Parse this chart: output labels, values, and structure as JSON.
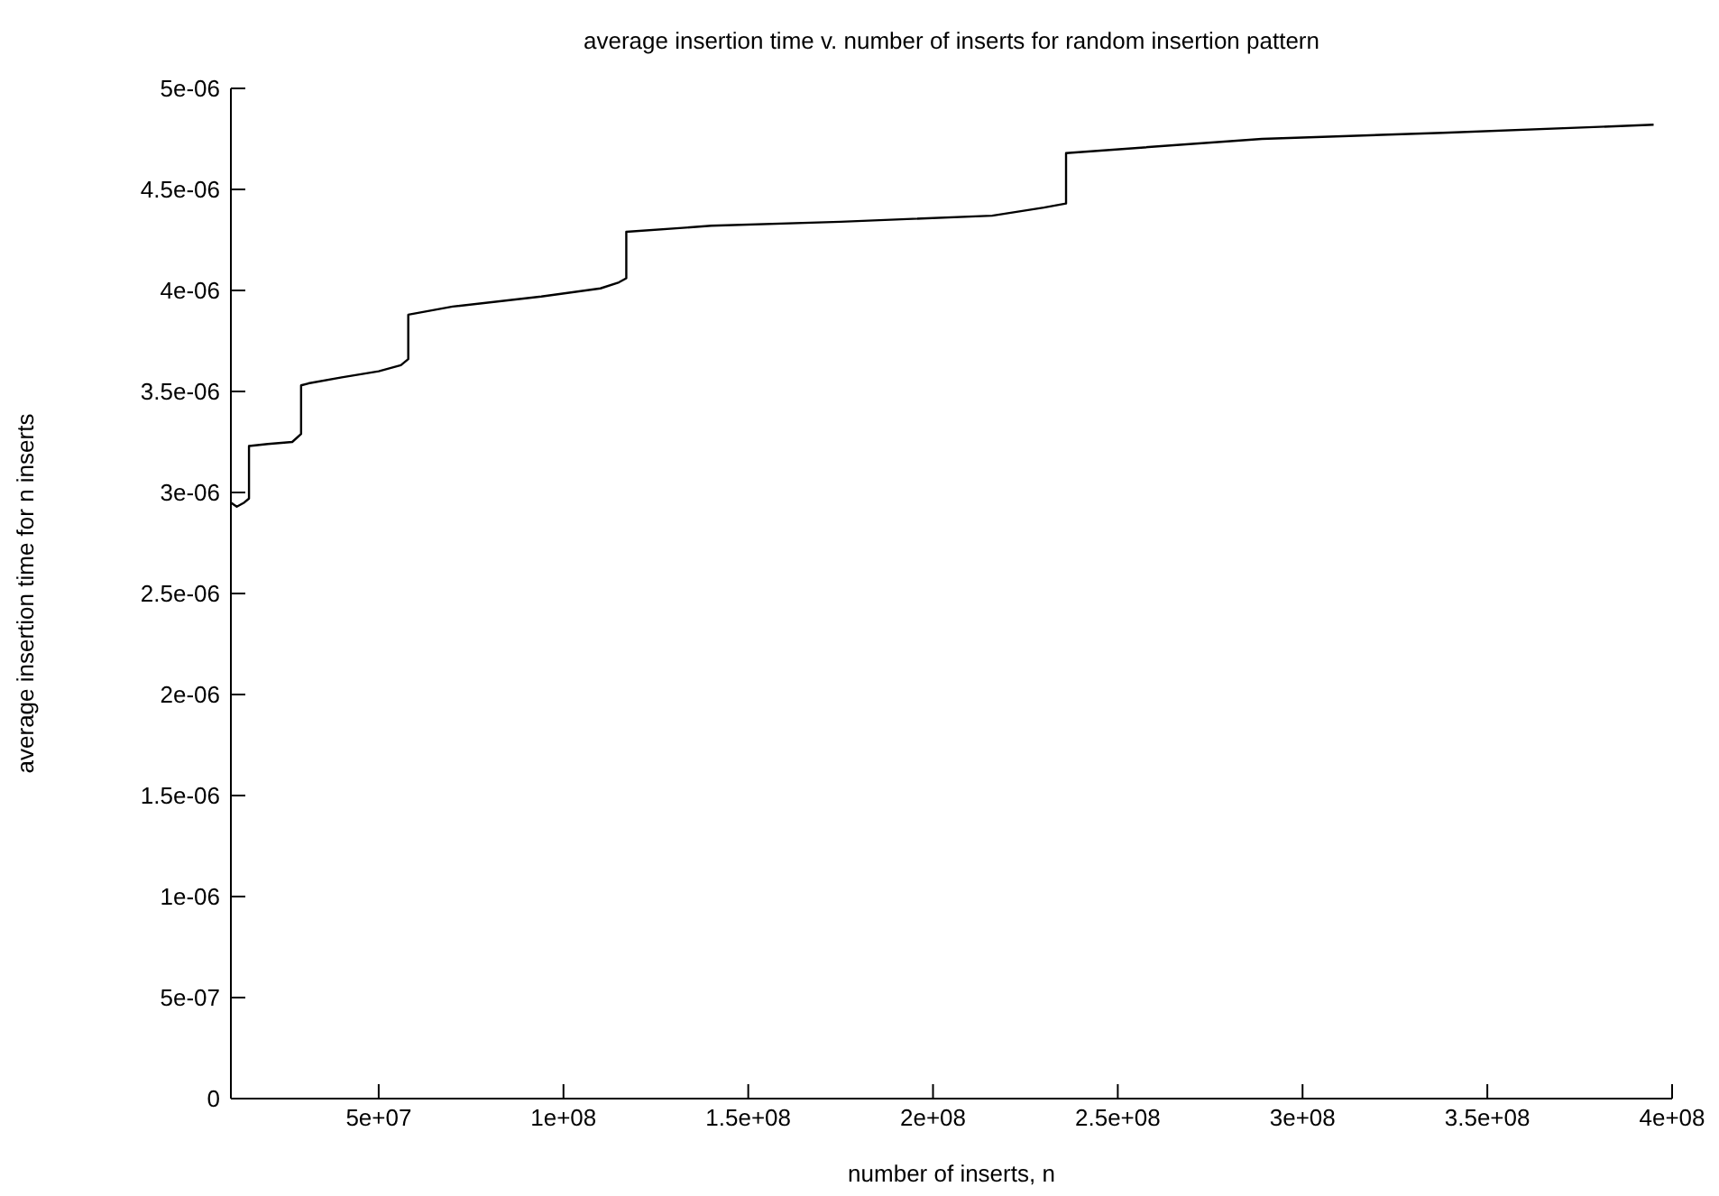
{
  "chart_data": {
    "type": "line",
    "title": "average insertion time v. number of inserts for random insertion pattern",
    "xlabel": "number of inserts, n",
    "ylabel": "average insertion time for n inserts",
    "x": [
      10000000.0,
      11600000.0,
      13600000.0,
      14900000.0,
      14900000.0,
      20000000.0,
      26600000.0,
      29000000.0,
      29000000.0,
      31000000.0,
      40000000.0,
      50000000.0,
      56000000.0,
      58000000.0,
      58000000.0,
      70000000.0,
      94000000.0,
      110000000.0,
      115000000.0,
      117000000.0,
      117000000.0,
      140000000.0,
      175000000.0,
      216000000.0,
      230000000.0,
      236000000.0,
      236000000.0,
      289000000.0,
      338000000.0,
      395000000.0
    ],
    "series": [
      {
        "color": "#000000",
        "values": [
          2.95e-06,
          2.93e-06,
          2.95e-06,
          2.97e-06,
          3.23e-06,
          3.24e-06,
          3.25e-06,
          3.29e-06,
          3.53e-06,
          3.54e-06,
          3.57e-06,
          3.6e-06,
          3.63e-06,
          3.66e-06,
          3.88e-06,
          3.92e-06,
          3.97e-06,
          4.01e-06,
          4.04e-06,
          4.06e-06,
          4.29e-06,
          4.32e-06,
          4.34e-06,
          4.37e-06,
          4.41e-06,
          4.43e-06,
          4.68e-06,
          4.75e-06,
          4.78e-06,
          4.82e-06
        ]
      }
    ],
    "xlim": [
      10000000.0,
      400000000.0
    ],
    "xticks": [
      {
        "value": 50000000.0,
        "label": "5e+07"
      },
      {
        "value": 100000000.0,
        "label": "1e+08"
      },
      {
        "value": 150000000.0,
        "label": "1.5e+08"
      },
      {
        "value": 200000000.0,
        "label": "2e+08"
      },
      {
        "value": 250000000.0,
        "label": "2.5e+08"
      },
      {
        "value": 300000000.0,
        "label": "3e+08"
      },
      {
        "value": 350000000.0,
        "label": "3.5e+08"
      },
      {
        "value": 400000000.0,
        "label": "4e+08"
      }
    ],
    "ylim": [
      0,
      5e-06
    ],
    "yticks": [
      0,
      {
        "value": 5e-07,
        "label": "5e-07"
      },
      {
        "value": 1e-06,
        "label": "1e-06"
      },
      {
        "value": 1.5e-06,
        "label": "1.5e-06"
      },
      {
        "value": 2e-06,
        "label": "2e-06"
      },
      {
        "value": 2.5e-06,
        "label": "2.5e-06"
      },
      {
        "value": 3e-06,
        "label": "3e-06"
      },
      {
        "value": 3.5e-06,
        "label": "3.5e-06"
      },
      {
        "value": 4e-06,
        "label": "4e-06"
      },
      {
        "value": 4.5e-06,
        "label": "4.5e-06"
      },
      {
        "value": 5e-06,
        "label": "5e-06"
      }
    ],
    "grid": false,
    "legend": false,
    "marker": "none",
    "line_style": "solid"
  }
}
